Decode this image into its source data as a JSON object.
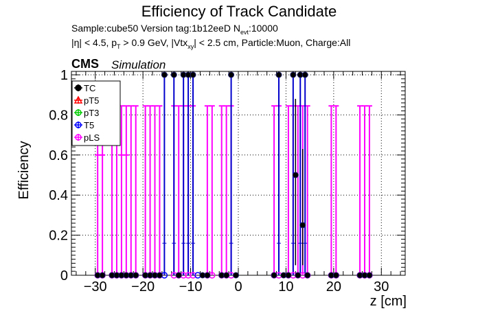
{
  "header": {
    "title": "Efficiency of Track Candidate",
    "sample_line": {
      "part1": "Sample:cube50   Version tag:1b12eeD  N",
      "sub1": "evt",
      "part2": ":10000"
    },
    "cuts_line": {
      "a": "|η| < 4.5, p",
      "sub_a": "T",
      "b": " > 0.9 GeV, |Vtx",
      "sub_b": "xy",
      "c": "| < 2.5 cm, Particle:Muon, Charge:All"
    },
    "cms_label": "CMS",
    "simulation_label": "Simulation"
  },
  "chart_data": {
    "type": "scatter",
    "title": "Efficiency of Track Candidate",
    "xlabel": "z [cm]",
    "ylabel": "Efficiency",
    "xlim": [
      -35,
      35
    ],
    "ylim": [
      0,
      1.02
    ],
    "x_ticks": [
      -30,
      -20,
      -10,
      0,
      10,
      20,
      30
    ],
    "x_tick_labels": [
      "−30",
      "−20",
      "−10",
      "0",
      "10",
      "20",
      "30"
    ],
    "y_ticks": [
      0,
      0.2,
      0.4,
      0.6,
      0.8,
      1
    ],
    "y_tick_labels": [
      "0",
      "0.2",
      "0.4",
      "0.6",
      "0.8",
      "1"
    ],
    "grid": true,
    "legend_position": "top-left",
    "series": [
      {
        "name": "TC",
        "color": "#000000",
        "marker": "filled-circle",
        "points": [
          {
            "x": -29.5,
            "y": 0
          },
          {
            "x": -28.5,
            "y": 0
          },
          {
            "x": -26.5,
            "y": 0
          },
          {
            "x": -25.5,
            "y": 0
          },
          {
            "x": -24.5,
            "y": 0
          },
          {
            "x": -23.5,
            "y": 0
          },
          {
            "x": -22.5,
            "y": 0
          },
          {
            "x": -21.5,
            "y": 0
          },
          {
            "x": -19.5,
            "y": 0
          },
          {
            "x": -18.5,
            "y": 0
          },
          {
            "x": -17.5,
            "y": 0
          },
          {
            "x": -16.5,
            "y": 0
          },
          {
            "x": -15.5,
            "y": 1
          },
          {
            "x": -13.5,
            "y": 1
          },
          {
            "x": -12.5,
            "y": 0
          },
          {
            "x": -11.5,
            "y": 1
          },
          {
            "x": -10.5,
            "y": 1
          },
          {
            "x": -9.5,
            "y": 1
          },
          {
            "x": -7.5,
            "y": 0
          },
          {
            "x": -6.5,
            "y": 0
          },
          {
            "x": -3.5,
            "y": 0
          },
          {
            "x": -2.5,
            "y": 0
          },
          {
            "x": -1.5,
            "y": 1
          },
          {
            "x": -0.5,
            "y": 0
          },
          {
            "x": 7.5,
            "y": 0
          },
          {
            "x": 8.5,
            "y": 1
          },
          {
            "x": 9.5,
            "y": 0
          },
          {
            "x": 10.5,
            "y": 0
          },
          {
            "x": 11.5,
            "y": 1
          },
          {
            "x": 12.0,
            "y": 0.5
          },
          {
            "x": 12.5,
            "y": 0
          },
          {
            "x": 13.0,
            "y": 1
          },
          {
            "x": 13.5,
            "y": 0.25
          },
          {
            "x": 14.0,
            "y": 1
          },
          {
            "x": 14.5,
            "y": 0
          },
          {
            "x": 19.5,
            "y": 0
          },
          {
            "x": 20.5,
            "y": 0
          },
          {
            "x": 25.5,
            "y": 0
          },
          {
            "x": 26.5,
            "y": 0
          },
          {
            "x": 27.5,
            "y": 0
          }
        ]
      },
      {
        "name": "pT5",
        "color": "#ff0000",
        "marker": "open-triangle",
        "points": []
      },
      {
        "name": "pT3",
        "color": "#00cc00",
        "marker": "open-circle",
        "points": []
      },
      {
        "name": "T5",
        "color": "#0000ff",
        "marker": "open-circle",
        "points": [
          {
            "x": -15.5,
            "y": 0
          },
          {
            "x": -8.5,
            "y": 0
          }
        ]
      },
      {
        "name": "pLS",
        "color": "#ff00ff",
        "marker": "open-circle",
        "points": [
          {
            "x": -29.5,
            "y": 0
          },
          {
            "x": -28.5,
            "y": 0
          },
          {
            "x": -26.5,
            "y": 0
          },
          {
            "x": -25.5,
            "y": 0
          },
          {
            "x": -24.5,
            "y": 0
          },
          {
            "x": -23.5,
            "y": 0
          },
          {
            "x": -22.5,
            "y": 0
          },
          {
            "x": -21.5,
            "y": 0
          },
          {
            "x": -19.5,
            "y": 0
          },
          {
            "x": -18.5,
            "y": 0
          },
          {
            "x": -17.5,
            "y": 0
          },
          {
            "x": -16.5,
            "y": 0
          },
          {
            "x": -13.5,
            "y": 0
          },
          {
            "x": -12.5,
            "y": 0
          },
          {
            "x": -11.5,
            "y": 0
          },
          {
            "x": -10.5,
            "y": 0
          },
          {
            "x": -9.5,
            "y": 0
          },
          {
            "x": -6.5,
            "y": 0
          },
          {
            "x": -5.5,
            "y": 0
          },
          {
            "x": -3.5,
            "y": 0
          },
          {
            "x": -2.5,
            "y": 0
          },
          {
            "x": -1.5,
            "y": 0
          },
          {
            "x": 7.5,
            "y": 0
          },
          {
            "x": 8.5,
            "y": 0
          },
          {
            "x": 10.5,
            "y": 0
          },
          {
            "x": 11.5,
            "y": 0
          },
          {
            "x": 12.5,
            "y": 0
          },
          {
            "x": 13.5,
            "y": 0
          },
          {
            "x": 14.5,
            "y": 0
          },
          {
            "x": 19.5,
            "y": 0
          },
          {
            "x": 20.5,
            "y": 0
          },
          {
            "x": 25.5,
            "y": 0
          },
          {
            "x": 26.5,
            "y": 0
          },
          {
            "x": 27.5,
            "y": 0
          }
        ]
      }
    ]
  }
}
